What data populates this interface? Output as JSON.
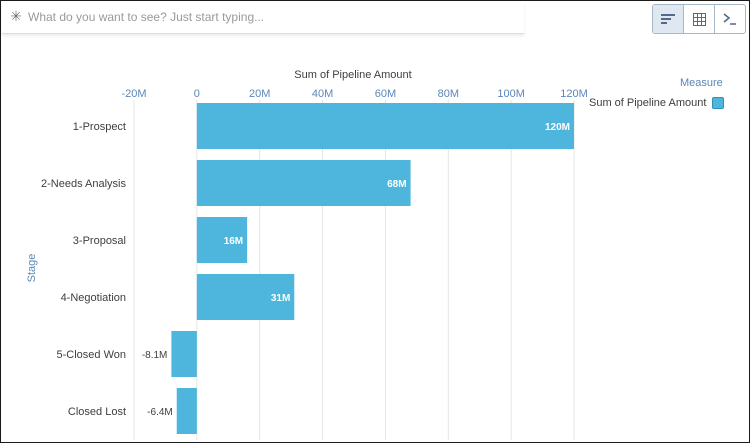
{
  "search": {
    "placeholder": "What do you want to see? Just start typing..."
  },
  "toolbar": {
    "buttons": [
      {
        "icon": "bar-chart-icon",
        "active": true
      },
      {
        "icon": "table-icon",
        "active": false
      },
      {
        "icon": "console-icon",
        "active": false
      }
    ]
  },
  "legend": {
    "title": "Measure",
    "item": "Sum of Pipeline Amount"
  },
  "colors": {
    "bar": "#4eb6dc",
    "grid": "#e5e5e5",
    "axis_text": "#5a87b8",
    "label_text": "#3e3e3c"
  },
  "chart_data": {
    "type": "bar",
    "orientation": "horizontal",
    "xlabel": "Sum of Pipeline Amount",
    "ylabel": "Stage",
    "ticks": [
      "-20M",
      "0",
      "20M",
      "40M",
      "60M",
      "80M",
      "100M",
      "120M"
    ],
    "tick_values": [
      -20,
      0,
      20,
      40,
      60,
      80,
      100,
      120
    ],
    "xlim": [
      -20,
      120
    ],
    "categories": [
      "1-Prospect",
      "2-Needs Analysis",
      "3-Proposal",
      "4-Negotiation",
      "5-Closed Won",
      "Closed Lost"
    ],
    "values": [
      120,
      68,
      16,
      31,
      -8.1,
      -6.4
    ],
    "data_labels": [
      "120M",
      "68M",
      "16M",
      "31M",
      "-8.1M",
      "-6.4M"
    ],
    "unit": "M",
    "series": [
      {
        "name": "Sum of Pipeline Amount",
        "values": [
          120,
          68,
          16,
          31,
          -8.1,
          -6.4
        ]
      }
    ],
    "grid": true,
    "legend_position": "top-right"
  }
}
